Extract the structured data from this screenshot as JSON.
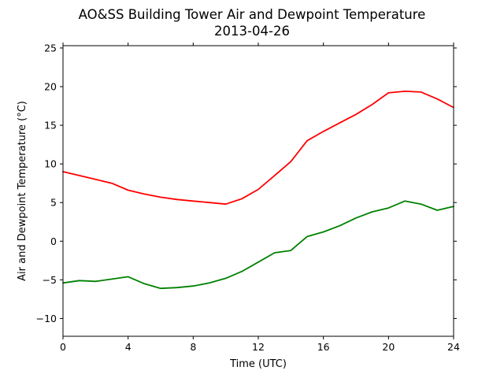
{
  "chart_data": {
    "type": "line",
    "title": "AO&SS Building Tower Air and Dewpoint Temperature",
    "subtitle": "2013-04-26",
    "xlabel": "Time (UTC)",
    "ylabel": "Air and Dewpoint Temperature (°C)",
    "xlim": [
      0,
      24
    ],
    "ylim": [
      -12.3,
      25.3
    ],
    "xticks": [
      0,
      4,
      8,
      12,
      16,
      20,
      24
    ],
    "yticks": [
      -10,
      -5,
      0,
      5,
      10,
      15,
      20,
      25
    ],
    "grid": false,
    "x": [
      0,
      1,
      2,
      3,
      4,
      5,
      6,
      7,
      8,
      9,
      10,
      11,
      12,
      13,
      14,
      15,
      16,
      17,
      18,
      19,
      20,
      21,
      22,
      23,
      24
    ],
    "series": [
      {
        "color": "#ff0000",
        "values": [
          9.0,
          8.5,
          8.0,
          7.5,
          6.6,
          6.1,
          5.7,
          5.4,
          5.2,
          5.0,
          4.8,
          5.5,
          6.7,
          8.5,
          10.3,
          13.0,
          14.2,
          15.3,
          16.4,
          17.7,
          19.2,
          19.4,
          19.3,
          18.4,
          17.3
        ]
      },
      {
        "color": "#008000",
        "values": [
          -5.4,
          -5.1,
          -5.2,
          -4.9,
          -4.6,
          -5.5,
          -6.1,
          -6.0,
          -5.8,
          -5.4,
          -4.8,
          -3.9,
          -2.7,
          -1.5,
          -1.2,
          0.6,
          1.2,
          2.0,
          3.0,
          3.8,
          4.3,
          5.2,
          4.8,
          4.0,
          4.5
        ]
      }
    ]
  }
}
